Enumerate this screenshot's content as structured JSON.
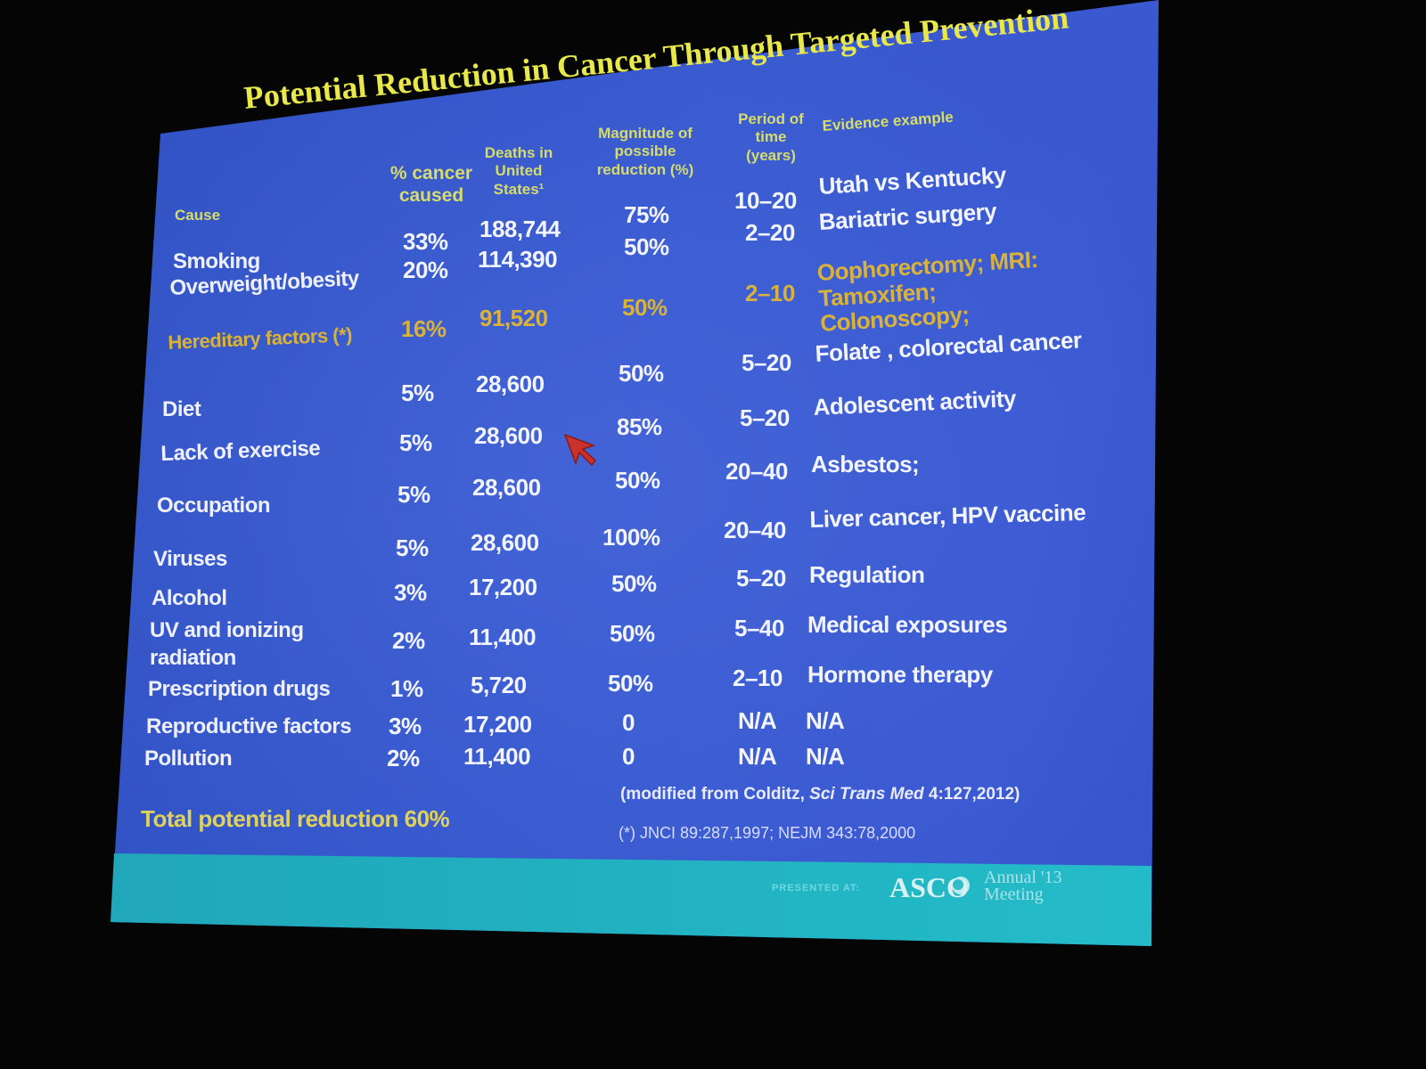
{
  "slide": {
    "title": "Potential Reduction in Cancer Through Targeted Prevention",
    "headers": {
      "cause": "Cause",
      "percent": "% cancer caused",
      "deaths": "Deaths in United States¹",
      "magnitude": "Magnitude of possible reduction (%)",
      "period": "Period of time (years)",
      "evidence": "Evidence example"
    },
    "rows": [
      {
        "cause": "Smoking",
        "percent": "33%",
        "deaths": "188,744",
        "magnitude": "75%",
        "period": "10–20",
        "evidence": "Utah vs Kentucky"
      },
      {
        "cause": "Overweight/obesity",
        "percent": "20%",
        "deaths": "114,390",
        "magnitude": "50%",
        "period": "2–20",
        "evidence": "Bariatric surgery"
      },
      {
        "cause": "Hereditary factors (*)",
        "percent": "16%",
        "deaths": "91,520",
        "magnitude": "50%",
        "period": "2–10",
        "evidence": "Oophorectomy; MRI: Tamoxifen; Colonoscopy;"
      },
      {
        "cause": "Diet",
        "percent": "5%",
        "deaths": "28,600",
        "magnitude": "50%",
        "period": "5–20",
        "evidence": "Folate , colorectal cancer"
      },
      {
        "cause": "Lack of exercise",
        "percent": "5%",
        "deaths": "28,600",
        "magnitude": "85%",
        "period": "5–20",
        "evidence": "Adolescent  activity"
      },
      {
        "cause": "Occupation",
        "percent": "5%",
        "deaths": "28,600",
        "magnitude": "50%",
        "period": "20–40",
        "evidence": "Asbestos;"
      },
      {
        "cause": "Viruses",
        "percent": "5%",
        "deaths": "28,600",
        "magnitude": "100%",
        "period": "20–40",
        "evidence": "Liver cancer, HPV vaccine"
      },
      {
        "cause": "Alcohol",
        "percent": "3%",
        "deaths": "17,200",
        "magnitude": "50%",
        "period": "5–20",
        "evidence": "Regulation"
      },
      {
        "cause": "UV and ionizing radiation",
        "percent": "2%",
        "deaths": "11,400",
        "magnitude": "50%",
        "period": "5–40",
        "evidence": "Medical exposures"
      },
      {
        "cause": "Prescription drugs",
        "percent": "1%",
        "deaths": "5,720",
        "magnitude": "50%",
        "period": "2–10",
        "evidence": "Hormone therapy"
      },
      {
        "cause": "Reproductive factors",
        "percent": "3%",
        "deaths": "17,200",
        "magnitude": "0",
        "period": "N/A",
        "evidence": "N/A"
      },
      {
        "cause": "Pollution",
        "percent": "2%",
        "deaths": "11,400",
        "magnitude": "0",
        "period": "N/A",
        "evidence": "N/A"
      }
    ],
    "total": "Total potential reduction  60%",
    "source_pre": "(modified  from  Colditz, ",
    "source_journal": "Sci Trans Med",
    "source_post": " 4:127,2012)",
    "reference": "(*) JNCI 89:287,1997;  NEJM  343:78,2000",
    "footer": {
      "presented_at": "PRESENTED AT:",
      "asco": "ASCO",
      "meeting": "Annual '13 Meeting"
    }
  },
  "colors": {
    "slide_blue": "#3858cf",
    "title_yellow": "#e8e84a",
    "highlight_orange": "#d9b23a",
    "footer_teal": "#22b6c4"
  }
}
